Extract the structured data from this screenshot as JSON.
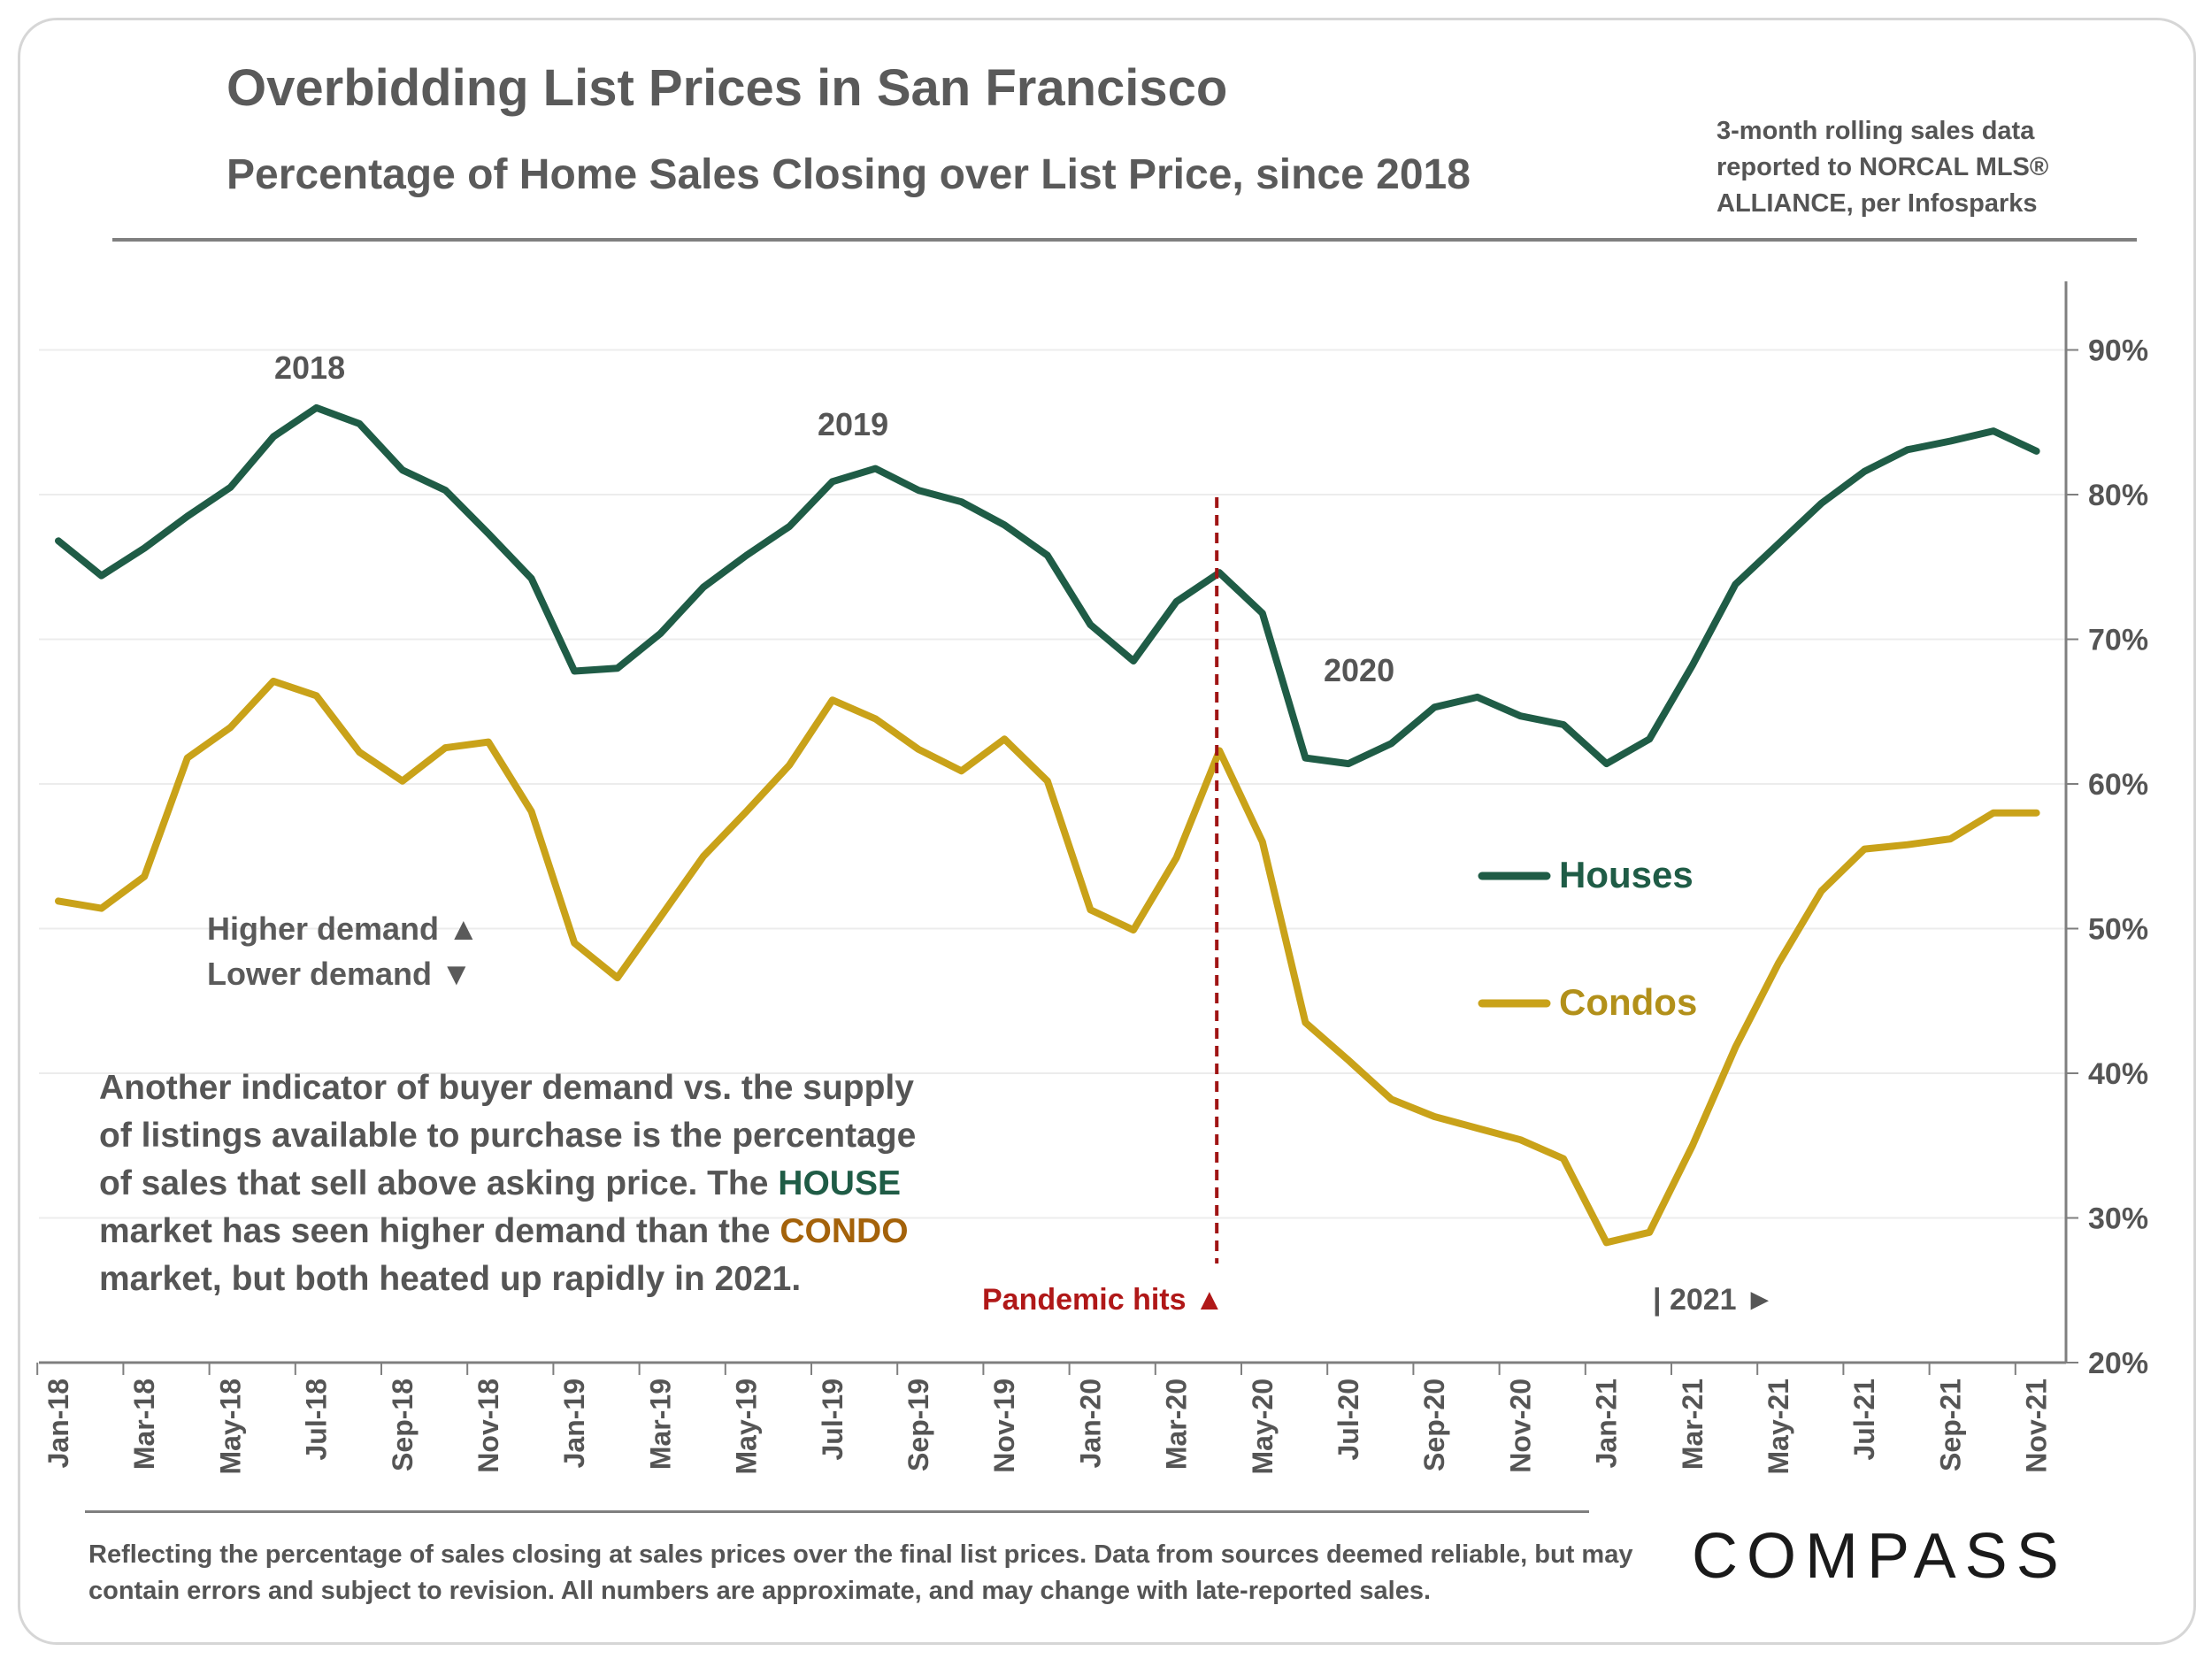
{
  "header": {
    "title": "Overbidding List Prices in San Francisco",
    "subtitle": "Percentage of  Home Sales Closing over List Price, since 2018",
    "source": "3-month rolling sales data reported to NORCAL MLS® ALLIANCE, per Infosparks"
  },
  "chart_data": {
    "type": "line",
    "title": "Overbidding List Prices in San Francisco",
    "subtitle": "Percentage of  Home Sales Closing over List Price, since 2018",
    "x": [
      "Jan-18",
      "Feb-18",
      "Mar-18",
      "Apr-18",
      "May-18",
      "Jun-18",
      "Jul-18",
      "Aug-18",
      "Sep-18",
      "Oct-18",
      "Nov-18",
      "Dec-18",
      "Jan-19",
      "Feb-19",
      "Mar-19",
      "Apr-19",
      "May-19",
      "Jun-19",
      "Jul-19",
      "Aug-19",
      "Sep-19",
      "Oct-19",
      "Nov-19",
      "Dec-19",
      "Jan-20",
      "Feb-20",
      "Mar-20",
      "Apr-20",
      "May-20",
      "Jun-20",
      "Jul-20",
      "Aug-20",
      "Sep-20",
      "Oct-20",
      "Nov-20",
      "Dec-20",
      "Jan-21",
      "Feb-21",
      "Mar-21",
      "Apr-21",
      "May-21",
      "Jun-21",
      "Jul-21",
      "Aug-21",
      "Sep-21",
      "Oct-21",
      "Nov-21"
    ],
    "x_tick_labels": [
      "Jan-18",
      "Mar-18",
      "May-18",
      "Jul-18",
      "Sep-18",
      "Nov-18",
      "Jan-19",
      "Mar-19",
      "May-19",
      "Jul-19",
      "Sep-19",
      "Nov-19",
      "Jan-20",
      "Mar-20",
      "May-20",
      "Jul-20",
      "Sep-20",
      "Nov-20",
      "Jan-21",
      "Mar-21",
      "May-21",
      "Jul-21",
      "Sep-21",
      "Nov-21"
    ],
    "series": [
      {
        "name": "Houses",
        "color": "#1f5c46",
        "values": [
          76.8,
          74.4,
          76.3,
          78.5,
          80.5,
          84.0,
          86.0,
          84.9,
          81.7,
          80.3,
          77.3,
          74.2,
          67.8,
          68.0,
          70.4,
          73.6,
          75.8,
          77.8,
          80.9,
          81.8,
          80.3,
          79.5,
          77.9,
          75.8,
          71.0,
          68.5,
          72.6,
          74.6,
          71.8,
          61.8,
          61.4,
          62.8,
          65.3,
          66.0,
          64.7,
          64.1,
          61.4,
          63.1,
          68.2,
          73.8,
          76.6,
          79.4,
          81.6,
          83.1,
          83.7,
          84.4,
          83.0
        ]
      },
      {
        "name": "Condos",
        "color": "#c9a219",
        "values": [
          51.9,
          51.4,
          53.6,
          61.8,
          63.9,
          67.1,
          66.1,
          62.2,
          60.2,
          62.5,
          62.9,
          58.1,
          49.0,
          46.6,
          50.8,
          55.0,
          58.1,
          61.3,
          65.8,
          64.5,
          62.4,
          60.9,
          63.1,
          60.2,
          51.3,
          49.9,
          54.9,
          62.3,
          56.0,
          43.5,
          40.9,
          38.2,
          37.0,
          36.2,
          35.4,
          34.1,
          28.3,
          29.0,
          35.0,
          41.8,
          47.6,
          52.6,
          55.5,
          55.8,
          56.2,
          58.0,
          58.0
        ]
      }
    ],
    "ylim": [
      20,
      95
    ],
    "y_ticks": [
      20,
      30,
      40,
      50,
      60,
      70,
      80,
      90
    ],
    "y_tick_labels": [
      "20%",
      "30%",
      "40%",
      "50%",
      "60%",
      "70%",
      "80%",
      "90%"
    ],
    "legend": {
      "position": "center-right",
      "entries": [
        "Houses",
        "Condos"
      ]
    },
    "year_annotations": [
      "2018",
      "2019",
      "2020"
    ],
    "pandemic_marker": {
      "at": "Apr-20",
      "label": "Pandemic hits ▲",
      "color": "#b01818"
    },
    "year_2021_marker": "|  2021 ►",
    "demand_key": {
      "higher": "Higher demand ▲",
      "lower": "Lower demand  ▼"
    }
  },
  "narrative": {
    "part1": "Another indicator of buyer demand vs. the supply of listings available to purchase is the percentage of sales that sell above asking price. The ",
    "house": "HOUSE",
    "part2": " market has seen higher demand than the ",
    "condo": "CONDO",
    "part3": " market, but both heated up rapidly in 2021."
  },
  "footer": {
    "note": "Reflecting the percentage of sales closing at sales prices over the final list prices. Data from sources deemed reliable, but may contain errors and subject to revision. All numbers are approximate, and may change with late-reported sales.",
    "logo": "COMPASS"
  }
}
